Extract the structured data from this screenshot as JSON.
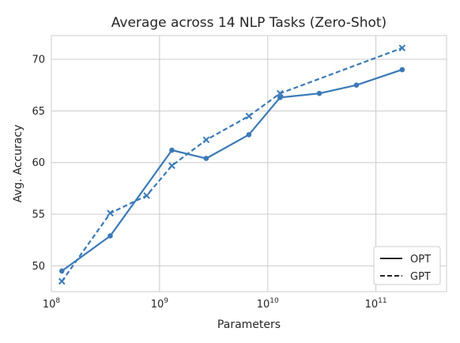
{
  "chart_data": {
    "type": "line",
    "title": "Average across 14 NLP Tasks (Zero-Shot)",
    "xlabel": "Parameters",
    "ylabel": "Avg. Accuracy",
    "xscale": "log",
    "xlim": [
      100000000,
      450000000000
    ],
    "ylim": [
      47.5,
      72.3
    ],
    "grid": true,
    "legend_position": "bottom-right",
    "x_ticks": [
      {
        "value": 100000000,
        "base": "10",
        "exp": "8"
      },
      {
        "value": 1000000000,
        "base": "10",
        "exp": "9"
      },
      {
        "value": 10000000000,
        "base": "10",
        "exp": "10"
      },
      {
        "value": 100000000000,
        "base": "10",
        "exp": "11"
      }
    ],
    "y_ticks": [
      {
        "value": 50,
        "label": "50"
      },
      {
        "value": 55,
        "label": "55"
      },
      {
        "value": 60,
        "label": "60"
      },
      {
        "value": 65,
        "label": "65"
      },
      {
        "value": 70,
        "label": "70"
      }
    ],
    "series": [
      {
        "name": "OPT",
        "style": "solid",
        "marker": "circle",
        "color": "#3a7ab7",
        "x": [
          125000000,
          350000000,
          1300000000,
          2700000000,
          6700000000,
          13000000000,
          30000000000,
          66000000000,
          175000000000
        ],
        "y": [
          49.5,
          52.9,
          61.2,
          60.4,
          62.7,
          66.3,
          66.7,
          67.5,
          69.0
        ]
      },
      {
        "name": "GPT",
        "style": "dashed",
        "marker": "x",
        "color": "#3a7ab7",
        "x": [
          125000000,
          350000000,
          760000000,
          1300000000,
          2700000000,
          6700000000,
          13000000000,
          175000000000
        ],
        "y": [
          48.5,
          55.1,
          56.8,
          59.7,
          62.2,
          64.5,
          66.7,
          71.1
        ]
      }
    ]
  }
}
